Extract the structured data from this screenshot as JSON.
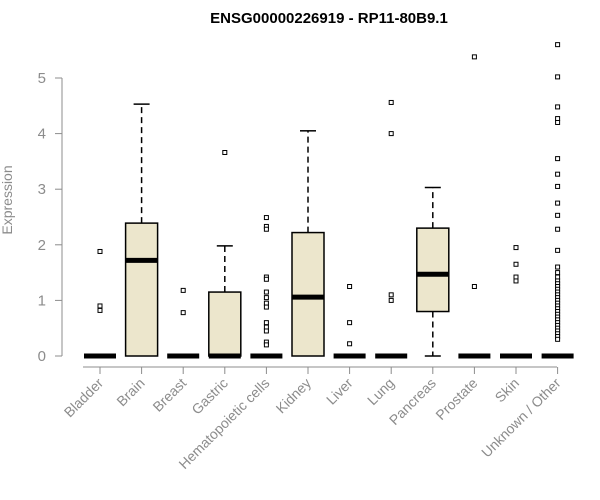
{
  "chart_data": {
    "type": "box",
    "title": "ENSG00000226919 - RP11-80B9.1",
    "ylabel": "Expression",
    "xlabel": "",
    "ylim": [
      0,
      5.7
    ],
    "yticks": [
      "0",
      "1",
      "2",
      "3",
      "4",
      "5"
    ],
    "categories": [
      "Bladder",
      "Brain",
      "Breast",
      "Gastric",
      "Hematopoietic cells",
      "Kidney",
      "Liver",
      "Lung",
      "Pancreas",
      "Prostate",
      "Skin",
      "Unknown / Other"
    ],
    "boxes": [
      {
        "category": "Bladder",
        "min": 0,
        "q1": 0,
        "median": 0,
        "q3": 0,
        "max": 0,
        "outliers": [
          1.88,
          0.9,
          0.82
        ]
      },
      {
        "category": "Brain",
        "min": 0,
        "q1": 0,
        "median": 1.72,
        "q3": 2.39,
        "max": 4.53,
        "outliers": []
      },
      {
        "category": "Breast",
        "min": 0,
        "q1": 0,
        "median": 0,
        "q3": 0,
        "max": 0,
        "outliers": [
          1.18,
          0.78
        ]
      },
      {
        "category": "Gastric",
        "min": 0,
        "q1": 0,
        "median": 0,
        "q3": 1.15,
        "max": 1.98,
        "outliers": [
          3.66
        ]
      },
      {
        "category": "Hematopoietic cells",
        "min": 0,
        "q1": 0,
        "median": 0,
        "q3": 0,
        "max": 0,
        "outliers": [
          2.49,
          2.33,
          2.28,
          1.42,
          1.38,
          1.15,
          1.05,
          0.95,
          0.88,
          0.6,
          0.52,
          0.45,
          0.25,
          0.2
        ]
      },
      {
        "category": "Kidney",
        "min": 0,
        "q1": 0,
        "median": 1.06,
        "q3": 2.22,
        "max": 4.05,
        "outliers": []
      },
      {
        "category": "Liver",
        "min": 0,
        "q1": 0,
        "median": 0,
        "q3": 0,
        "max": 0,
        "outliers": [
          1.25,
          0.6,
          0.22
        ]
      },
      {
        "category": "Lung",
        "min": 0,
        "q1": 0,
        "median": 0,
        "q3": 0,
        "max": 0,
        "outliers": [
          4.56,
          4.0,
          1.1,
          1.0
        ]
      },
      {
        "category": "Pancreas",
        "min": 0,
        "q1": 0.8,
        "median": 1.47,
        "q3": 2.3,
        "max": 3.03,
        "outliers": []
      },
      {
        "category": "Prostate",
        "min": 0,
        "q1": 0,
        "median": 0,
        "q3": 0,
        "max": 0,
        "outliers": [
          5.38,
          1.25
        ]
      },
      {
        "category": "Skin",
        "min": 0,
        "q1": 0,
        "median": 0,
        "q3": 0,
        "max": 0,
        "outliers": [
          1.95,
          1.65,
          1.42,
          1.35
        ]
      },
      {
        "category": "Unknown / Other",
        "min": 0,
        "q1": 0,
        "median": 0,
        "q3": 0,
        "max": 0,
        "outliers": [
          5.6,
          5.02,
          4.48,
          4.27,
          4.2,
          3.55,
          3.27,
          3.05,
          2.75,
          2.53,
          2.28,
          1.9,
          1.6,
          1.5,
          1.42,
          1.35,
          1.3,
          1.25,
          1.2,
          1.15,
          1.1,
          1.05,
          1.0,
          0.95,
          0.9,
          0.85,
          0.8,
          0.75,
          0.7,
          0.65,
          0.6,
          0.55,
          0.5,
          0.45,
          0.4,
          0.35,
          0.3
        ]
      }
    ],
    "colors": {
      "box_fill": "#ece6cc",
      "stroke": "#000000",
      "axis": "#8c8c8c"
    },
    "grid": false,
    "legend": "none"
  }
}
